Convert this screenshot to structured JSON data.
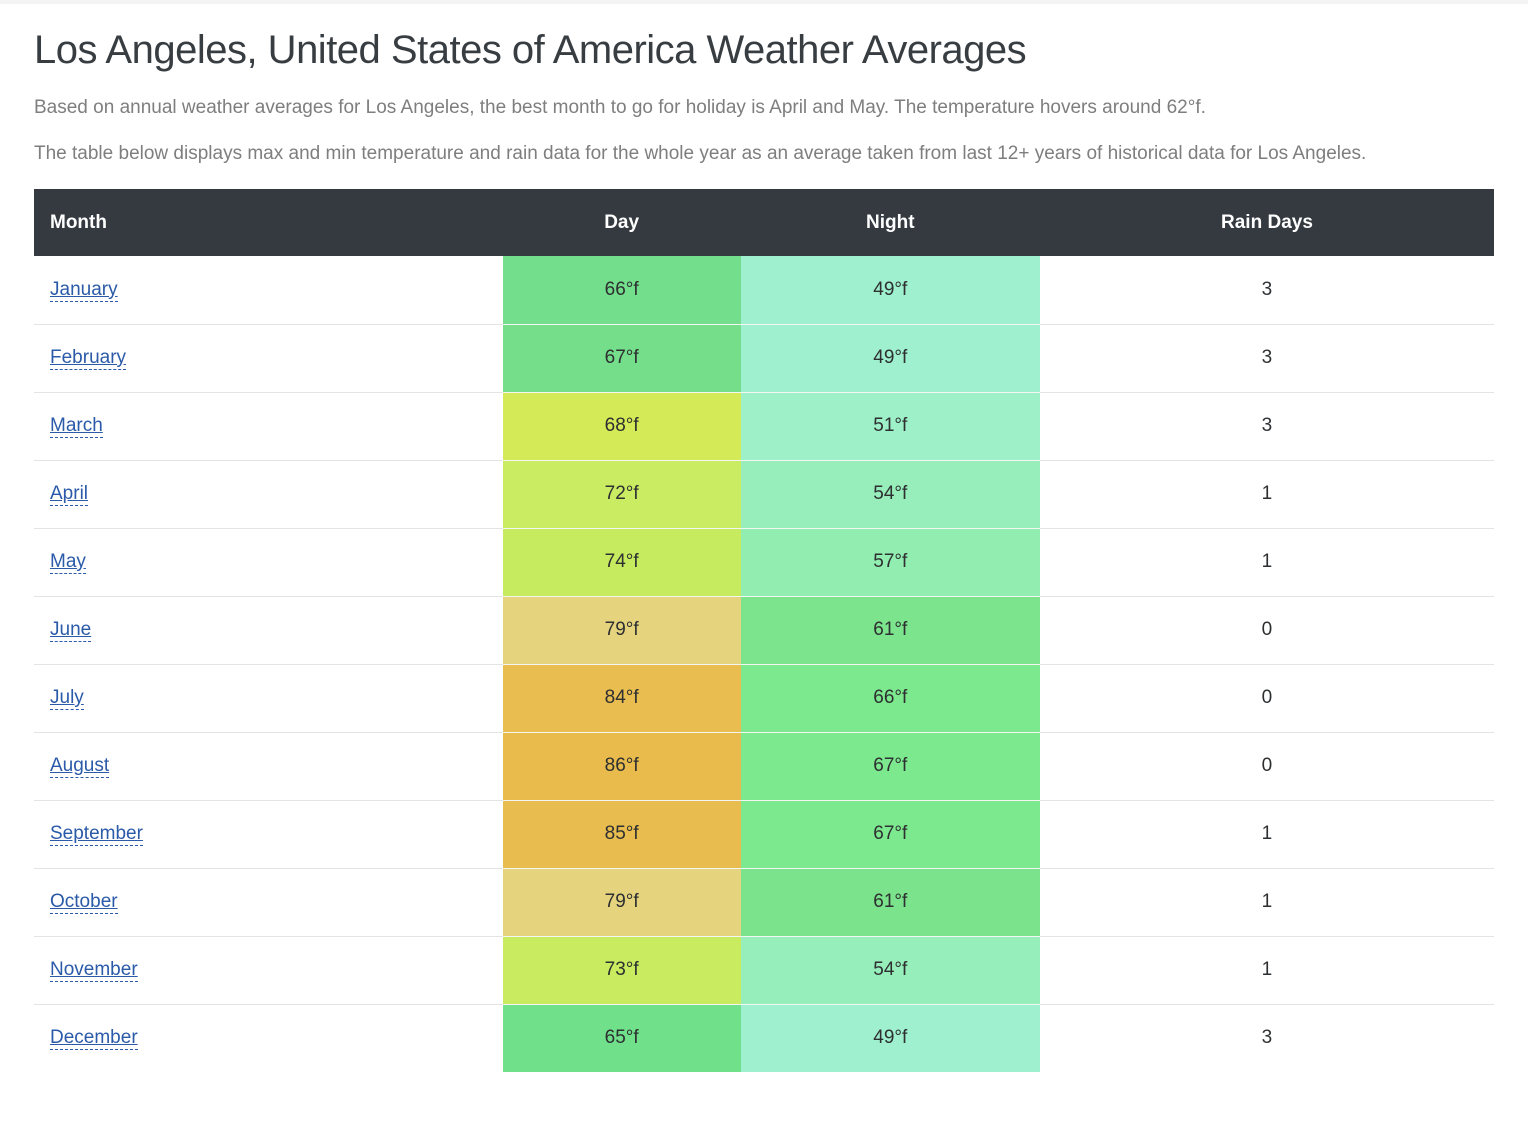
{
  "page": {
    "title": "Los Angeles, United States of America Weather Averages",
    "intro1": "Based on annual weather averages for Los Angeles, the best month to go for holiday is April and May. The temperature hovers around 62°f.",
    "intro2": "The table below displays max and min temperature and rain data for the whole year as an average taken from last 12+ years of historical data for Los Angeles."
  },
  "colors": {
    "header_bg": "#343a40",
    "header_text": "#ffffff",
    "link": "#2a5aa8",
    "body_text": "#7e7e7e",
    "title_text": "#383d42"
  },
  "table": {
    "headers": {
      "month": "Month",
      "day": "Day",
      "night": "Night",
      "rain": "Rain Days"
    },
    "rows": [
      {
        "month": "January",
        "day": "66°f",
        "day_color": "#73de8b",
        "night": "49°f",
        "night_color": "#9ff0ce",
        "rain_days": "3"
      },
      {
        "month": "February",
        "day": "67°f",
        "day_color": "#74de8b",
        "night": "49°f",
        "night_color": "#9ff0ce",
        "rain_days": "3"
      },
      {
        "month": "March",
        "day": "68°f",
        "day_color": "#d5ea57",
        "night": "51°f",
        "night_color": "#9df0c7",
        "rain_days": "3"
      },
      {
        "month": "April",
        "day": "72°f",
        "day_color": "#caec62",
        "night": "54°f",
        "night_color": "#97eebb",
        "rain_days": "1"
      },
      {
        "month": "May",
        "day": "74°f",
        "day_color": "#c6eb5e",
        "night": "57°f",
        "night_color": "#92edb0",
        "rain_days": "1"
      },
      {
        "month": "June",
        "day": "79°f",
        "day_color": "#e6d37e",
        "night": "61°f",
        "night_color": "#7be48c",
        "rain_days": "0"
      },
      {
        "month": "July",
        "day": "84°f",
        "day_color": "#e9bd50",
        "night": "66°f",
        "night_color": "#7de98e",
        "rain_days": "0"
      },
      {
        "month": "August",
        "day": "86°f",
        "day_color": "#e8bb4c",
        "night": "67°f",
        "night_color": "#7de98e",
        "rain_days": "0"
      },
      {
        "month": "September",
        "day": "85°f",
        "day_color": "#e8bc4e",
        "night": "67°f",
        "night_color": "#7de98e",
        "rain_days": "1"
      },
      {
        "month": "October",
        "day": "79°f",
        "day_color": "#e5d37d",
        "night": "61°f",
        "night_color": "#7ae38b",
        "rain_days": "1"
      },
      {
        "month": "November",
        "day": "73°f",
        "day_color": "#c8eb60",
        "night": "54°f",
        "night_color": "#96eeba",
        "rain_days": "1"
      },
      {
        "month": "December",
        "day": "65°f",
        "day_color": "#70e08b",
        "night": "49°f",
        "night_color": "#9ff0ce",
        "rain_days": "3"
      }
    ]
  }
}
